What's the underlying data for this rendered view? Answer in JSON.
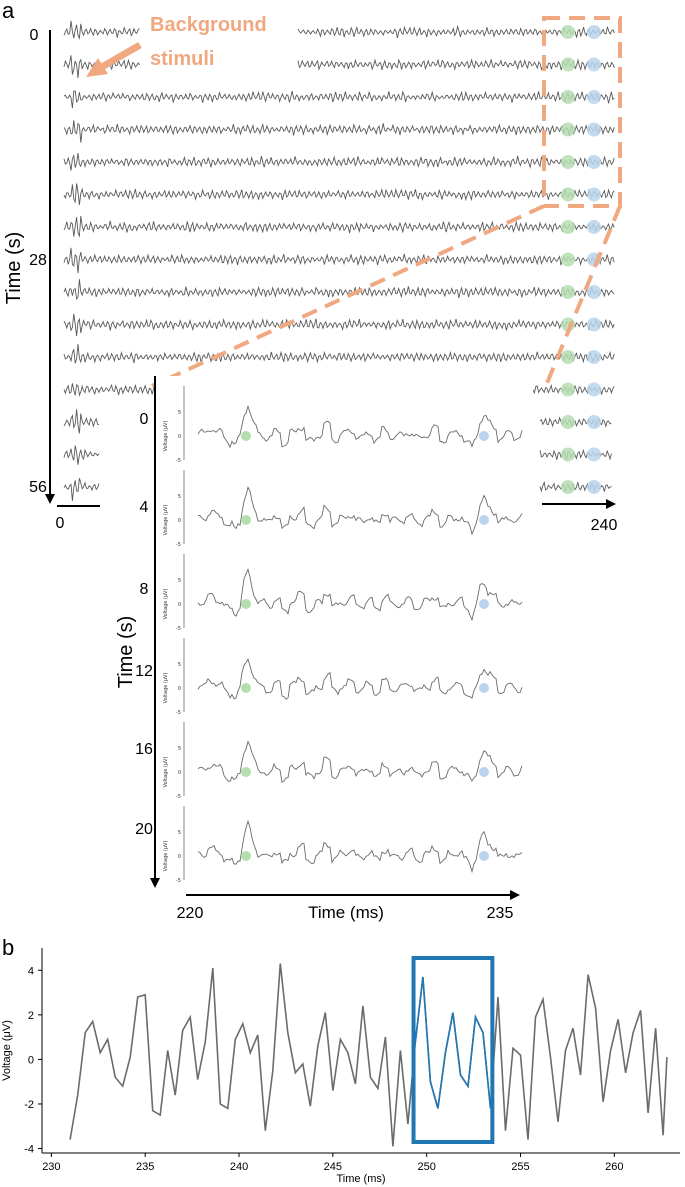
{
  "colors": {
    "accent": "#f0a881",
    "highlight": "#1f77b4",
    "marker_green": "#b5ddb0",
    "marker_blue": "#b9d3ec",
    "trace": "#6b6b6b"
  },
  "chart_data": [
    {
      "panel": "a",
      "type": "line",
      "title": "",
      "ylabel": "Time (s)",
      "y_ticks": [
        "0",
        "28",
        "56"
      ],
      "x_ticks": [
        "0",
        "240"
      ],
      "annotation": [
        "Background",
        "stimuli"
      ],
      "traces": 15
    },
    {
      "panel": "a-inset",
      "type": "line",
      "ylabel": "Time (s)",
      "xlabel": "Time (ms)",
      "y_ticks": [
        "0",
        "4",
        "8",
        "12",
        "16",
        "20"
      ],
      "x_ticks": [
        "220",
        "235"
      ],
      "trace_ylabel": "Voltage (µV)",
      "trace_y_ticks": [
        "5",
        "0",
        "-5"
      ],
      "traces": 6
    },
    {
      "panel": "b",
      "type": "line",
      "xlabel": "Time (ms)",
      "ylabel": "Voltage (μV)",
      "xlim": [
        229.5,
        263.5
      ],
      "ylim": [
        -4.2,
        5
      ],
      "x_ticks": [
        "230",
        "235",
        "240",
        "245",
        "250",
        "255",
        "260"
      ],
      "y_ticks": [
        "4",
        "2",
        "0",
        "-2",
        "-4"
      ],
      "highlight_range": [
        249.3,
        253.5
      ],
      "x": [
        231.0,
        231.4,
        231.8,
        232.2,
        232.6,
        233.0,
        233.4,
        233.8,
        234.2,
        234.6,
        235.0,
        235.4,
        235.8,
        236.2,
        236.6,
        237.0,
        237.4,
        237.8,
        238.2,
        238.6,
        239.0,
        239.4,
        239.8,
        240.2,
        240.6,
        241.0,
        241.4,
        241.8,
        242.2,
        242.6,
        243.0,
        243.4,
        243.8,
        244.2,
        244.6,
        245.0,
        245.4,
        245.8,
        246.2,
        246.6,
        247.0,
        247.4,
        247.8,
        248.2,
        248.6,
        249.0,
        249.4,
        249.8,
        250.2,
        250.6,
        251.0,
        251.4,
        251.8,
        252.2,
        252.6,
        253.0,
        253.4,
        253.8,
        254.2,
        254.6,
        255.0,
        255.4,
        255.8,
        256.2,
        256.6,
        257.0,
        257.4,
        257.8,
        258.2,
        258.6,
        259.0,
        259.4,
        259.8,
        260.2,
        260.6,
        261.0,
        261.4,
        261.8,
        262.2,
        262.6,
        262.8
      ],
      "y": [
        -3.6,
        -1.6,
        1.2,
        1.7,
        0.3,
        0.9,
        -0.8,
        -1.2,
        0.1,
        2.8,
        2.9,
        -2.3,
        -2.5,
        0.4,
        -1.6,
        1.3,
        1.9,
        -0.9,
        0.8,
        4.1,
        -2.0,
        -2.2,
        0.9,
        1.6,
        0.3,
        1.1,
        -3.2,
        -0.5,
        4.3,
        1.2,
        -0.6,
        -0.2,
        -2.1,
        0.6,
        2.1,
        -1.4,
        0.9,
        0.3,
        -1.1,
        2.4,
        -0.8,
        -1.3,
        1.0,
        -3.9,
        0.4,
        -2.9,
        0.8,
        3.7,
        -1.0,
        -2.2,
        0.3,
        2.1,
        -0.7,
        -1.2,
        1.9,
        1.2,
        -2.2,
        2.8,
        -3.2,
        0.5,
        0.2,
        -3.6,
        1.9,
        2.7,
        0.1,
        -2.8,
        0.4,
        1.4,
        -0.7,
        3.8,
        2.3,
        -1.9,
        0.4,
        1.8,
        -0.6,
        1.2,
        2.2,
        -2.4,
        1.4,
        -3.4,
        0.1
      ]
    }
  ],
  "panels": {
    "a": {
      "label": "a"
    },
    "b": {
      "label": "b"
    }
  }
}
